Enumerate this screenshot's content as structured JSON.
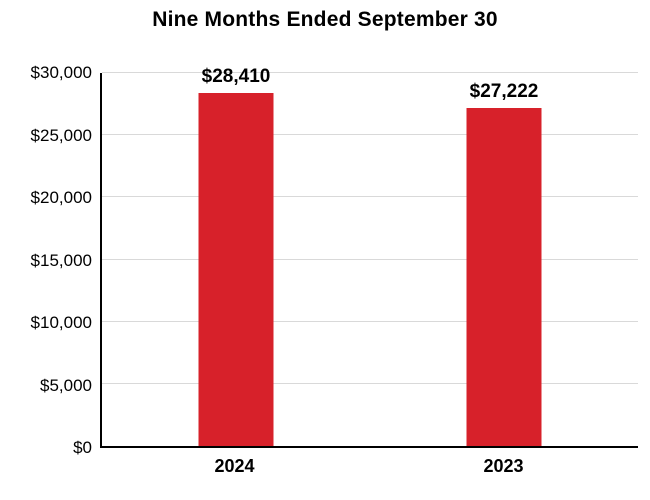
{
  "chart_data": {
    "type": "bar",
    "title": "Nine Months Ended September 30",
    "categories": [
      "2024",
      "2023"
    ],
    "values": [
      28410,
      27222
    ],
    "value_labels": [
      "$28,410",
      "$27,222"
    ],
    "xlabel": "",
    "ylabel": "",
    "ylim": [
      0,
      30000
    ],
    "ytick_values": [
      0,
      5000,
      10000,
      15000,
      20000,
      25000,
      30000
    ],
    "ytick_labels": [
      "$0",
      "$5,000",
      "$10,000",
      "$15,000",
      "$20,000",
      "$25,000",
      "$30,000"
    ],
    "grid": "horizontal",
    "legend": "none",
    "bar_color": "#D7212A",
    "gridline_color": "#D9D9D9",
    "axis_color": "#000000",
    "text_color": "#000000"
  }
}
